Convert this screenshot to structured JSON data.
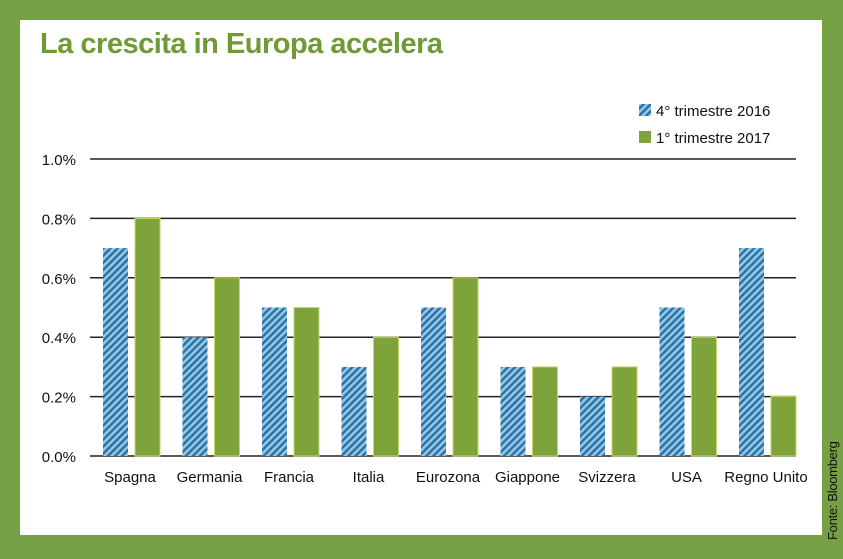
{
  "title": "La crescita in Europa accelera",
  "source": "Fonte: Bloomberg",
  "colors": {
    "border": "#76a044",
    "title": "#6f9a35",
    "series1": "#5aaad8",
    "series2": "#7ea33a"
  },
  "chart_data": {
    "type": "bar",
    "title": "La crescita in Europa accelera",
    "categories": [
      "Spagna",
      "Germania",
      "Francia",
      "Italia",
      "Eurozona",
      "Giappone",
      "Svizzera",
      "USA",
      "Regno Unito"
    ],
    "series": [
      {
        "name": "4° trimestre 2016",
        "values": [
          0.7,
          0.4,
          0.5,
          0.3,
          0.5,
          0.3,
          0.2,
          0.5,
          0.7
        ],
        "pattern": "hatched-blue"
      },
      {
        "name": "1° trimestre 2017",
        "values": [
          0.8,
          0.6,
          0.5,
          0.4,
          0.6,
          0.3,
          0.3,
          0.4,
          0.2
        ],
        "pattern": "solid-green"
      }
    ],
    "ylim": [
      0,
      1.0
    ],
    "yticks": [
      "0.0%",
      "0.2%",
      "0.4%",
      "0.6%",
      "0.8%",
      "1.0%"
    ],
    "ytick_values": [
      0,
      0.2,
      0.4,
      0.6,
      0.8,
      1.0
    ],
    "grid": true,
    "legend": "top-right",
    "xlabel": "",
    "ylabel": ""
  }
}
